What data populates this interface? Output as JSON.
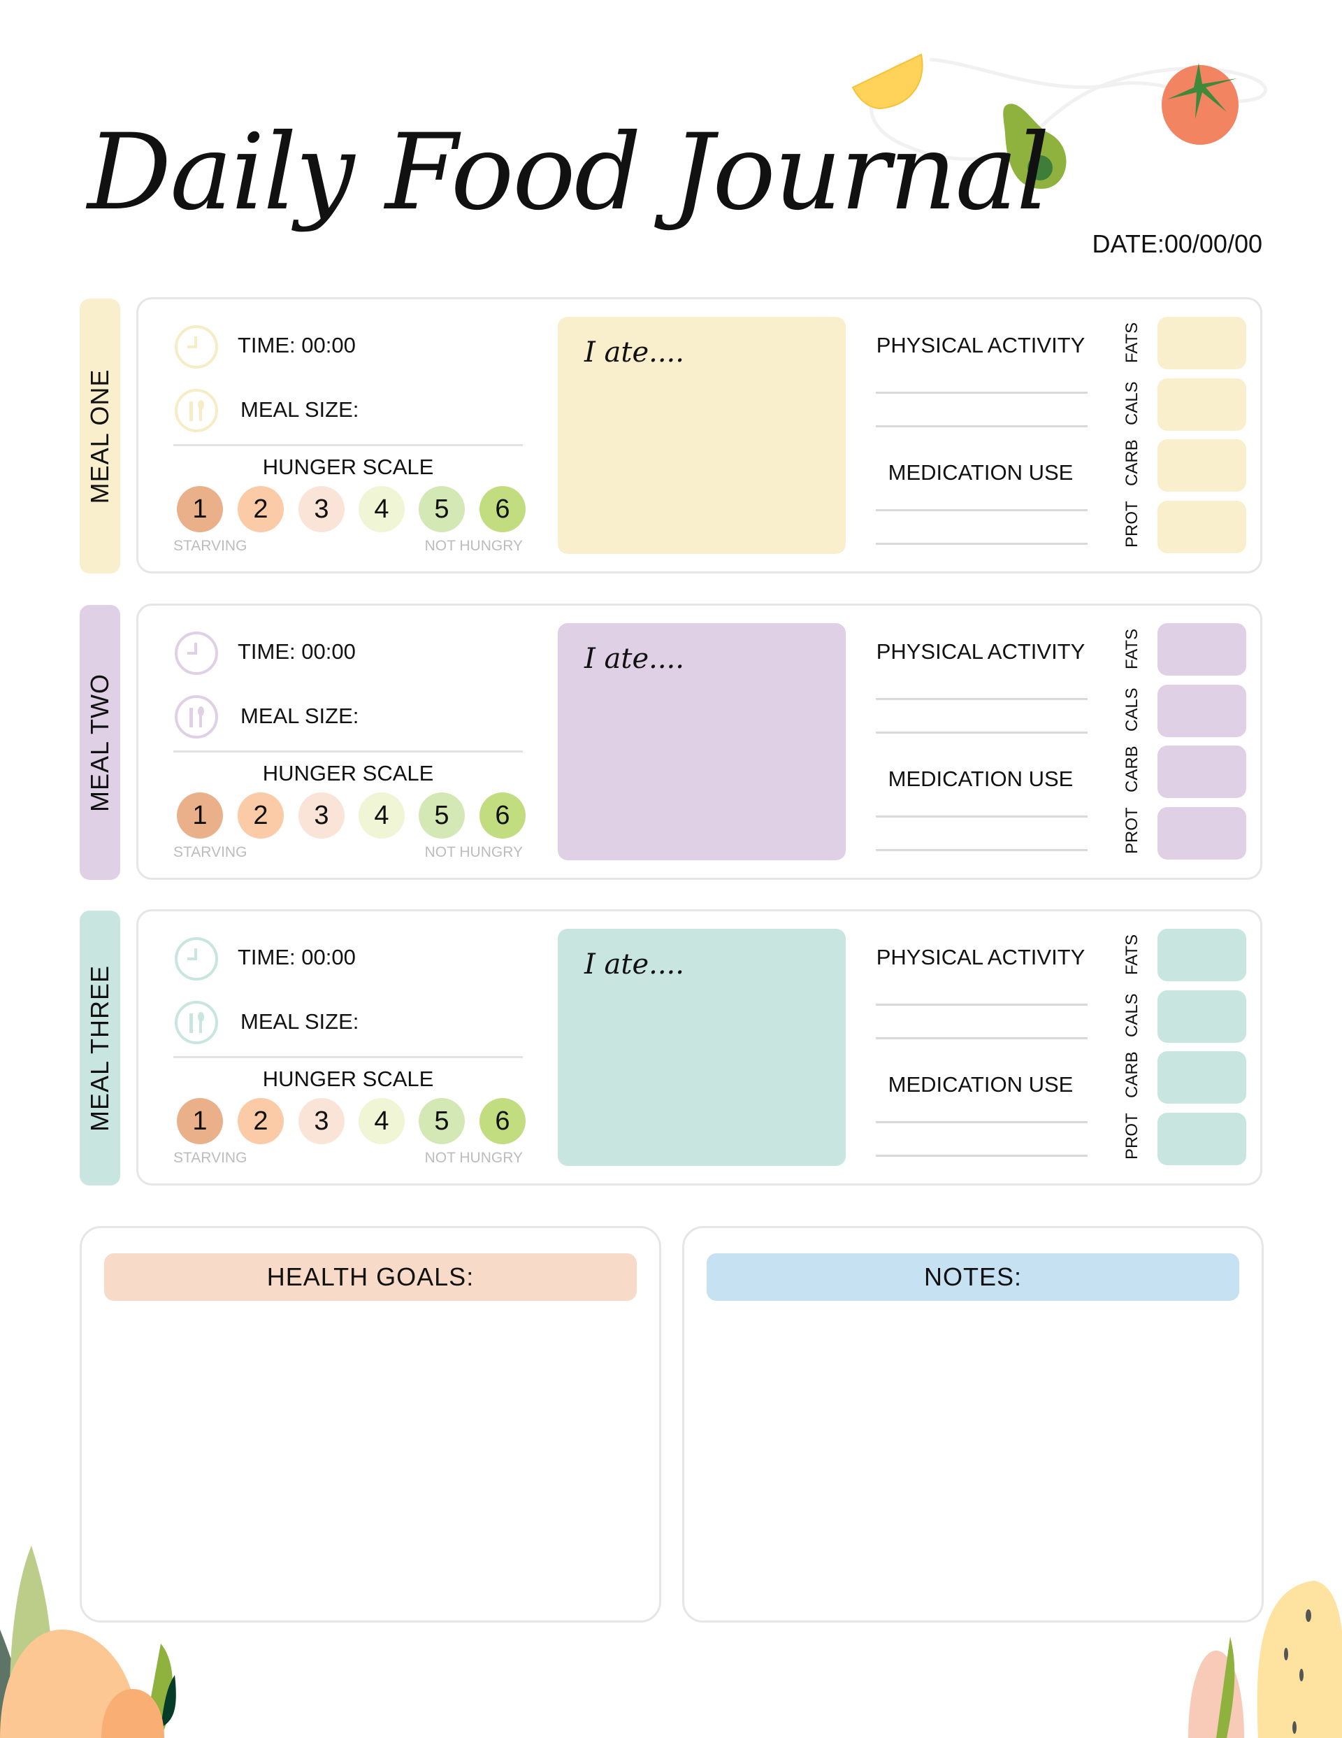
{
  "header": {
    "title": "Daily Food Journal",
    "date": "DATE:00/00/00"
  },
  "colors": {
    "meal_one": "#f9efcc",
    "meal_two": "#dfd0e6",
    "meal_three": "#c8e5df",
    "hunger": [
      "#e9b08a",
      "#fbcaa7",
      "#fae4d8",
      "#eff5d5",
      "#d3e8b5",
      "#c2dc80"
    ],
    "health_goals": "#f7dac8",
    "notes": "#c6e1f2"
  },
  "meals": [
    {
      "name": "MEAL ONE",
      "time": "TIME: 00:00",
      "meal_size": "MEAL SIZE:",
      "hunger_title": "HUNGER SCALE",
      "hunger": [
        "1",
        "2",
        "3",
        "4",
        "5",
        "6"
      ],
      "low": "STARVING",
      "high": "NOT HUNGRY",
      "ate": "I ate....",
      "activity": "PHYSICAL ACTIVITY",
      "medication": "MEDICATION USE",
      "nutrients": [
        "FATS",
        "CALS",
        "CARB",
        "PROT"
      ]
    },
    {
      "name": "MEAL TWO",
      "time": "TIME: 00:00",
      "meal_size": "MEAL SIZE:",
      "hunger_title": "HUNGER SCALE",
      "hunger": [
        "1",
        "2",
        "3",
        "4",
        "5",
        "6"
      ],
      "low": "STARVING",
      "high": "NOT HUNGRY",
      "ate": "I ate....",
      "activity": "PHYSICAL ACTIVITY",
      "medication": "MEDICATION USE",
      "nutrients": [
        "FATS",
        "CALS",
        "CARB",
        "PROT"
      ]
    },
    {
      "name": "MEAL THREE",
      "time": "TIME: 00:00",
      "meal_size": "MEAL SIZE:",
      "hunger_title": "HUNGER SCALE",
      "hunger": [
        "1",
        "2",
        "3",
        "4",
        "5",
        "6"
      ],
      "low": "STARVING",
      "high": "NOT HUNGRY",
      "ate": "I ate....",
      "activity": "PHYSICAL ACTIVITY",
      "medication": "MEDICATION USE",
      "nutrients": [
        "FATS",
        "CALS",
        "CARB",
        "PROT"
      ]
    }
  ],
  "health_goals": {
    "label": "HEALTH GOALS:"
  },
  "notes": {
    "label": "NOTES:"
  }
}
